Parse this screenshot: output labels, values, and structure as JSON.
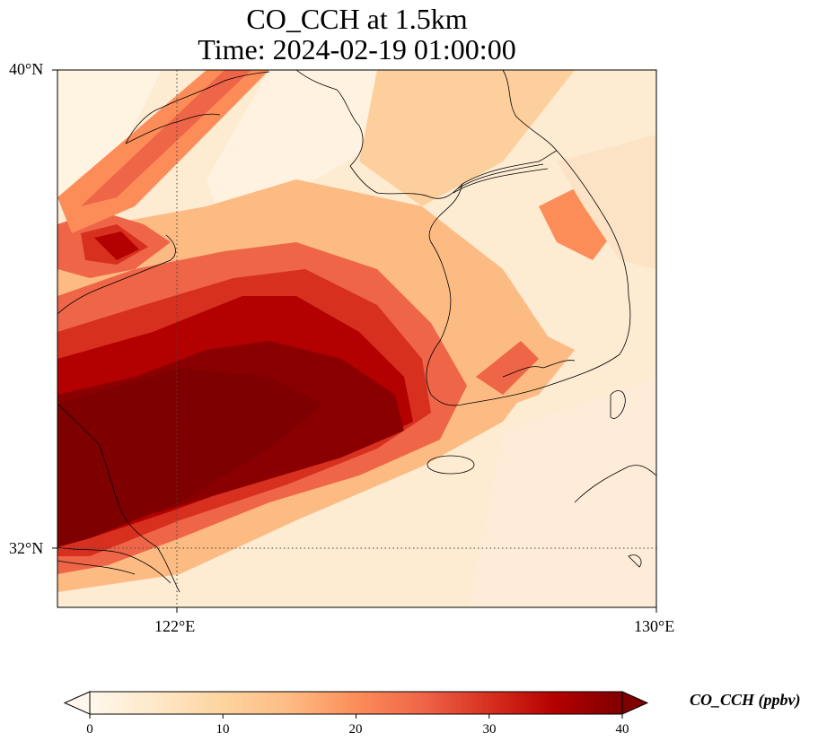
{
  "title": {
    "line1": "CO_CCH at 1.5km",
    "line2": "Time: 2024-02-19 01:00:00"
  },
  "map": {
    "variable": "CO_CCH",
    "level": "1.5km",
    "time": "2024-02-19 01:00:00",
    "extent": {
      "lon_min": 120.0,
      "lon_max": 130.0,
      "lat_min": 31.0,
      "lat_max": 40.0
    },
    "gridlines": {
      "lons": [
        122
      ],
      "lats": [
        32
      ],
      "style": "dotted"
    },
    "colormap": "OrRd",
    "coastlines": true
  },
  "axes": {
    "lat_ticks": [
      {
        "value": 40,
        "label": "40°N"
      },
      {
        "value": 32,
        "label": "32°N"
      }
    ],
    "lon_ticks": [
      {
        "value": 122,
        "label": "122°E"
      },
      {
        "value": 130,
        "label": "130°E"
      }
    ]
  },
  "colorbar": {
    "label": "CO_CCH (ppbv)",
    "min": 0,
    "max": 40,
    "extend": "both",
    "ticks": [
      {
        "value": 0,
        "label": "0"
      },
      {
        "value": 10,
        "label": "10"
      },
      {
        "value": 20,
        "label": "20"
      },
      {
        "value": 30,
        "label": "30"
      },
      {
        "value": 40,
        "label": "40"
      }
    ],
    "colors": [
      "#fff7ec",
      "#fee8c8",
      "#fdd49e",
      "#fdbb84",
      "#fc8d59",
      "#ef6548",
      "#d7301f",
      "#b30000",
      "#7f0000"
    ]
  }
}
